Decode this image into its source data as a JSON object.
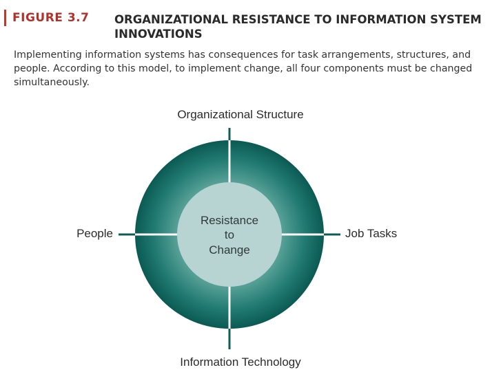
{
  "figure": {
    "label": "FIGURE 3.7",
    "title": "ORGANIZATIONAL RESISTANCE TO INFORMATION SYSTEM INNOVATIONS",
    "caption": "Implementing information systems has consequences for task arrangements, structures, and people. According to this model, to implement change, all four components must be changed simultaneously."
  },
  "diagram": {
    "center": {
      "line1": "Resistance",
      "line2": "to",
      "line3": "Change"
    },
    "components": {
      "top": "Organizational Structure",
      "right": "Job Tasks",
      "bottom": "Information Technology",
      "left": "People"
    }
  },
  "colors": {
    "accent_red": "#b5302a",
    "ring_dark": "#0b5e57",
    "ring_light": "#7fbab2",
    "center_fill": "#b8d4d2",
    "divider": "#ffffff"
  }
}
